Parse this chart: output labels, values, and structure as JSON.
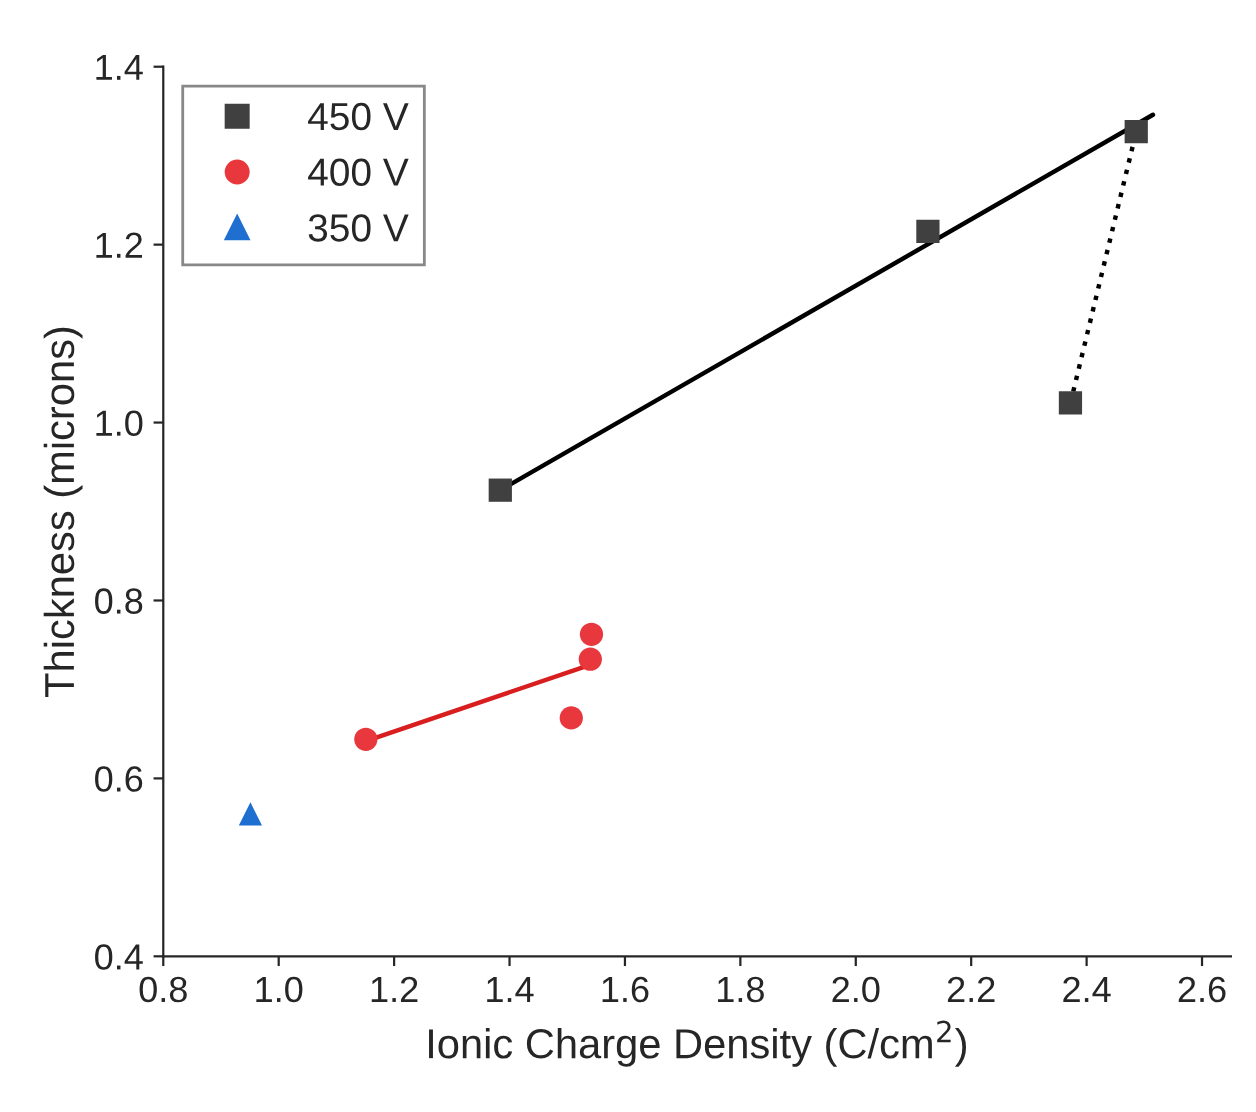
{
  "chart_data": {
    "type": "scatter",
    "xlabel": "Ionic Charge Density (C/cm$^{2}$)",
    "ylabel": "Thickness (microns)",
    "xlim": [
      0.8,
      2.65
    ],
    "ylim": [
      0.4,
      1.4
    ],
    "xticks": [
      0.8,
      {
        "value": 1,
        "label": "1.0"
      },
      1.2,
      1.4,
      1.6,
      1.8,
      {
        "value": 2,
        "label": "2.0"
      },
      2.2,
      2.4,
      2.6
    ],
    "yticks": [
      0.4,
      0.6,
      0.8,
      {
        "value": 1,
        "label": "1.0"
      },
      1.2,
      1.4
    ],
    "grid": false,
    "legend": "top left",
    "series": [
      {
        "name": "450 V",
        "color": "#404040",
        "marker": "square",
        "x": [
          1.384,
          2.125,
          2.372,
          2.486
        ],
        "values": [
          0.924,
          1.215,
          1.022,
          1.327
        ]
      },
      {
        "name": "400 V",
        "color": "#e8383d",
        "marker": "circle",
        "x": [
          1.151,
          1.507,
          1.54,
          1.542
        ],
        "values": [
          0.644,
          0.668,
          0.734,
          0.762
        ]
      },
      {
        "name": "350 V",
        "color": "#1f6fd1",
        "marker": "triangle",
        "x": [
          0.951
        ],
        "values": [
          0.56
        ]
      },
      {
        "type": "line",
        "color": "#000000",
        "marker": "none",
        "line_style": "solid",
        "x": [
          1.384,
          2.515
        ],
        "values": [
          0.924,
          1.346
        ]
      },
      {
        "type": "line",
        "color": "#000000",
        "marker": "none",
        "line_style": "dotted",
        "x": [
          2.372,
          2.486
        ],
        "values": [
          1.022,
          1.327
        ]
      },
      {
        "type": "line",
        "color": "#d81e1e",
        "marker": "none",
        "line_style": "solid",
        "x": [
          1.151,
          1.546
        ],
        "values": [
          0.642,
          0.729
        ]
      }
    ]
  }
}
